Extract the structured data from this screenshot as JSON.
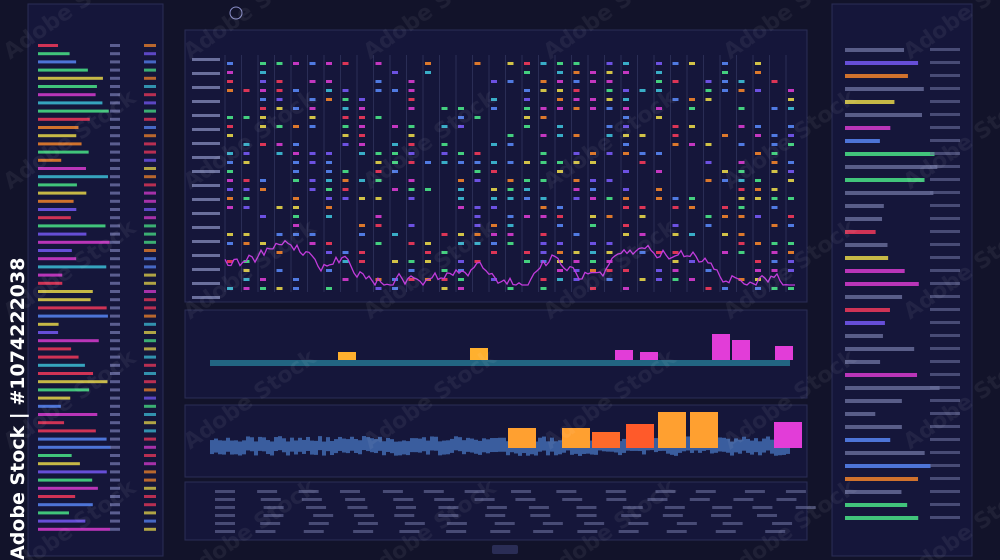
{
  "watermark": {
    "side_text": "Adobe Stock | #1074222038",
    "overlay_text": "Adobe Stock"
  }
}
